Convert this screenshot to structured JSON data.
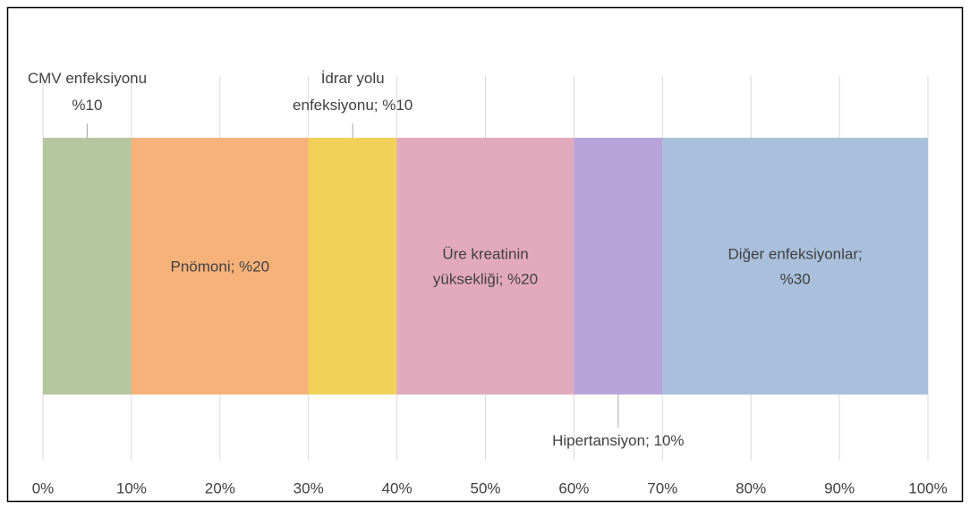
{
  "chart_data": {
    "type": "stacked_bar_horizontal",
    "series": [
      {
        "color": "#b5c7a0",
        "values": [
          10
        ],
        "value_labels": [
          "CMV enfeksiyonu\n%10"
        ]
      },
      {
        "color": "#f7b27a",
        "values": [
          20
        ],
        "value_labels": [
          "Pnömoni; %20"
        ]
      },
      {
        "color": "#f2d05a",
        "values": [
          10
        ],
        "value_labels": [
          "İdrar yolu\nenfeksiyonu; %10"
        ]
      },
      {
        "color": "#e2a9bd",
        "values": [
          20
        ],
        "value_labels": [
          "Üre kreatinin\nyüksekliği; %20"
        ]
      },
      {
        "color": "#b9a4d9",
        "values": [
          10
        ],
        "value_labels": [
          "Hipertansiyon; 10%"
        ]
      },
      {
        "color": "#a9bfdc",
        "values": [
          30
        ],
        "value_labels": [
          "Diğer enfeksiyonlar;\n%30"
        ]
      }
    ],
    "xlim": [
      0,
      100
    ],
    "xticks": [
      {
        "value": 0,
        "label": "0%"
      },
      {
        "value": 10,
        "label": "10%"
      },
      {
        "value": 20,
        "label": "20%"
      },
      {
        "value": 30,
        "label": "30%"
      },
      {
        "value": 40,
        "label": "40%"
      },
      {
        "value": 50,
        "label": "50%"
      },
      {
        "value": 60,
        "label": "60%"
      },
      {
        "value": 70,
        "label": "70%"
      },
      {
        "value": 80,
        "label": "80%"
      },
      {
        "value": 90,
        "label": "90%"
      },
      {
        "value": 100,
        "label": "100%"
      }
    ],
    "grid": true
  }
}
